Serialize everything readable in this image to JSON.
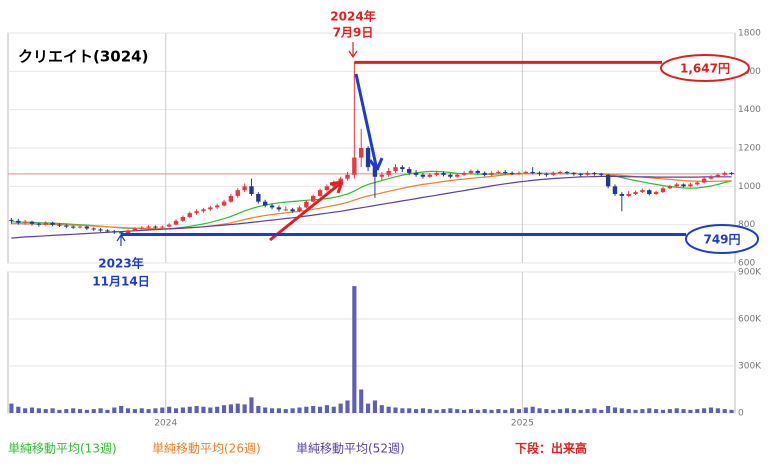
{
  "chart_data": {
    "type": "candlestick",
    "title": "クリエイト(3024)",
    "categories": [
      null,
      null,
      null,
      null,
      null,
      null,
      null,
      null,
      null,
      null,
      null,
      null,
      null,
      null,
      null,
      null,
      null,
      null,
      null,
      null,
      null,
      null,
      null,
      "2024",
      null,
      null,
      null,
      null,
      null,
      null,
      null,
      null,
      null,
      null,
      null,
      null,
      null,
      null,
      null,
      null,
      null,
      null,
      null,
      null,
      null,
      null,
      null,
      null,
      null,
      null,
      null,
      null,
      null,
      null,
      null,
      null,
      null,
      null,
      null,
      null,
      null,
      null,
      null,
      null,
      null,
      null,
      null,
      null,
      null,
      null,
      null,
      null,
      null,
      null,
      null,
      "2025",
      null,
      null,
      null,
      null,
      null,
      null,
      null,
      null,
      null,
      null,
      null,
      null,
      null,
      null,
      null,
      null,
      null,
      null,
      null,
      null,
      null,
      null,
      null,
      null,
      null,
      null,
      null,
      null,
      null,
      null
    ],
    "ohlc": [
      [
        825,
        835,
        805,
        820
      ],
      [
        820,
        830,
        800,
        810
      ],
      [
        810,
        825,
        800,
        815
      ],
      [
        815,
        820,
        795,
        805
      ],
      [
        805,
        812,
        790,
        800
      ],
      [
        800,
        818,
        795,
        810
      ],
      [
        810,
        815,
        792,
        800
      ],
      [
        800,
        808,
        788,
        795
      ],
      [
        795,
        802,
        782,
        790
      ],
      [
        790,
        796,
        778,
        785
      ],
      [
        785,
        798,
        780,
        790
      ],
      [
        790,
        795,
        772,
        780
      ],
      [
        780,
        786,
        768,
        775
      ],
      [
        775,
        782,
        762,
        770
      ],
      [
        770,
        776,
        758,
        765
      ],
      [
        765,
        772,
        752,
        760
      ],
      [
        760,
        766,
        749,
        755
      ],
      [
        755,
        775,
        752,
        770
      ],
      [
        770,
        786,
        765,
        780
      ],
      [
        780,
        792,
        775,
        785
      ],
      [
        785,
        798,
        780,
        790
      ],
      [
        790,
        796,
        778,
        785
      ],
      [
        785,
        796,
        780,
        790
      ],
      [
        790,
        808,
        786,
        800
      ],
      [
        800,
        828,
        796,
        820
      ],
      [
        820,
        848,
        815,
        840
      ],
      [
        840,
        868,
        835,
        860
      ],
      [
        860,
        880,
        852,
        870
      ],
      [
        870,
        888,
        862,
        880
      ],
      [
        880,
        898,
        872,
        890
      ],
      [
        890,
        910,
        882,
        900
      ],
      [
        900,
        930,
        895,
        920
      ],
      [
        920,
        960,
        915,
        950
      ],
      [
        950,
        990,
        940,
        980
      ],
      [
        980,
        1015,
        970,
        1000
      ],
      [
        1000,
        1040,
        950,
        960
      ],
      [
        960,
        970,
        910,
        920
      ],
      [
        920,
        930,
        890,
        900
      ],
      [
        900,
        910,
        880,
        890
      ],
      [
        890,
        900,
        868,
        880
      ],
      [
        880,
        895,
        870,
        880
      ],
      [
        880,
        888,
        862,
        870
      ],
      [
        870,
        898,
        865,
        890
      ],
      [
        890,
        928,
        885,
        920
      ],
      [
        920,
        958,
        915,
        950
      ],
      [
        950,
        988,
        945,
        980
      ],
      [
        980,
        1010,
        972,
        1000
      ],
      [
        1000,
        1030,
        995,
        1020
      ],
      [
        1020,
        1050,
        1010,
        1040
      ],
      [
        1040,
        1075,
        1030,
        1060
      ],
      [
        1060,
        1647,
        1040,
        1150
      ],
      [
        1150,
        1300,
        1100,
        1200
      ],
      [
        1200,
        1210,
        1080,
        1100
      ],
      [
        1100,
        1110,
        940,
        1050
      ],
      [
        1050,
        1075,
        1030,
        1060
      ],
      [
        1060,
        1095,
        1050,
        1080
      ],
      [
        1080,
        1115,
        1070,
        1100
      ],
      [
        1100,
        1110,
        1075,
        1090
      ],
      [
        1090,
        1100,
        1060,
        1070
      ],
      [
        1070,
        1085,
        1050,
        1060
      ],
      [
        1060,
        1070,
        1040,
        1050
      ],
      [
        1050,
        1070,
        1045,
        1060
      ],
      [
        1060,
        1080,
        1052,
        1070
      ],
      [
        1070,
        1078,
        1052,
        1060
      ],
      [
        1060,
        1068,
        1042,
        1050
      ],
      [
        1050,
        1068,
        1045,
        1060
      ],
      [
        1060,
        1078,
        1055,
        1070
      ],
      [
        1070,
        1088,
        1062,
        1080
      ],
      [
        1080,
        1088,
        1062,
        1070
      ],
      [
        1070,
        1078,
        1052,
        1060
      ],
      [
        1060,
        1078,
        1055,
        1070
      ],
      [
        1070,
        1082,
        1064,
        1075
      ],
      [
        1075,
        1085,
        1062,
        1070
      ],
      [
        1070,
        1078,
        1058,
        1065
      ],
      [
        1065,
        1078,
        1060,
        1070
      ],
      [
        1070,
        1082,
        1065,
        1075
      ],
      [
        1075,
        1100,
        1062,
        1070
      ],
      [
        1070,
        1078,
        1055,
        1065
      ],
      [
        1065,
        1072,
        1050,
        1060
      ],
      [
        1060,
        1078,
        1055,
        1070
      ],
      [
        1070,
        1082,
        1064,
        1075
      ],
      [
        1075,
        1080,
        1062,
        1070
      ],
      [
        1070,
        1075,
        1055,
        1065
      ],
      [
        1065,
        1070,
        1050,
        1060
      ],
      [
        1060,
        1078,
        1055,
        1070
      ],
      [
        1070,
        1075,
        1055,
        1065
      ],
      [
        1065,
        1070,
        1050,
        1060
      ],
      [
        1060,
        1065,
        990,
        1000
      ],
      [
        1000,
        1010,
        950,
        960
      ],
      [
        960,
        970,
        870,
        950
      ],
      [
        950,
        975,
        945,
        960
      ],
      [
        960,
        978,
        955,
        970
      ],
      [
        970,
        988,
        965,
        980
      ],
      [
        980,
        985,
        952,
        960
      ],
      [
        960,
        978,
        955,
        970
      ],
      [
        970,
        998,
        965,
        990
      ],
      [
        990,
        1008,
        985,
        1000
      ],
      [
        1000,
        1018,
        995,
        1010
      ],
      [
        1010,
        1015,
        995,
        1000
      ],
      [
        1000,
        1018,
        995,
        1010
      ],
      [
        1010,
        1028,
        1005,
        1020
      ],
      [
        1020,
        1048,
        1015,
        1040
      ],
      [
        1040,
        1058,
        1035,
        1050
      ],
      [
        1050,
        1068,
        1045,
        1060
      ],
      [
        1060,
        1078,
        1055,
        1070
      ],
      [
        1070,
        1075,
        1058,
        1065
      ]
    ],
    "up_color": "#e8383d",
    "down_color": "#1f3a93",
    "series": [
      {
        "name": "単純移動平均(13週)",
        "color": "#33bb33",
        "values": [
          815,
          814,
          813,
          812,
          810,
          809,
          808,
          806,
          804,
          802,
          800,
          798,
          795,
          792,
          789,
          786,
          783,
          781,
          780,
          779,
          778,
          778,
          778,
          779,
          782,
          786,
          791,
          797,
          804,
          812,
          821,
          831,
          843,
          857,
          872,
          884,
          894,
          902,
          909,
          914,
          918,
          921,
          924,
          927,
          930,
          932,
          936,
          942,
          950,
          960,
          975,
          995,
          1010,
          1020,
          1030,
          1040,
          1050,
          1058,
          1065,
          1070,
          1075,
          1078,
          1078,
          1076,
          1072,
          1068,
          1066,
          1065,
          1064,
          1064,
          1064,
          1065,
          1066,
          1066,
          1067,
          1067,
          1068,
          1068,
          1068,
          1068,
          1068,
          1068,
          1067,
          1067,
          1067,
          1066,
          1066,
          1062,
          1054,
          1045,
          1037,
          1030,
          1023,
          1016,
          1010,
          1004,
          999,
          995,
          992,
          990,
          992,
          996,
          1002,
          1010,
          1020,
          1028
        ]
      },
      {
        "name": "単純移動平均(26週)",
        "color": "#f07f2a",
        "values": [
          805,
          805,
          804,
          804,
          803,
          802,
          801,
          800,
          799,
          798,
          797,
          795,
          793,
          791,
          789,
          787,
          785,
          783,
          782,
          781,
          780,
          779,
          779,
          779,
          780,
          781,
          783,
          786,
          789,
          793,
          798,
          803,
          810,
          818,
          827,
          835,
          842,
          848,
          853,
          858,
          862,
          866,
          870,
          875,
          880,
          886,
          893,
          900,
          908,
          916,
          928,
          940,
          950,
          958,
          966,
          974,
          982,
          990,
          997,
          1004,
          1010,
          1015,
          1020,
          1025,
          1030,
          1034,
          1038,
          1042,
          1045,
          1048,
          1052,
          1056,
          1060,
          1063,
          1065,
          1066,
          1067,
          1067,
          1067,
          1067,
          1067,
          1067,
          1067,
          1066,
          1066,
          1066,
          1065,
          1063,
          1060,
          1057,
          1054,
          1051,
          1048,
          1045,
          1042,
          1039,
          1036,
          1033,
          1030,
          1028,
          1027,
          1026,
          1026,
          1027,
          1028,
          1029
        ]
      },
      {
        "name": "単純移動平均(52週)",
        "color": "#5a3ea8",
        "values": [
          730,
          733,
          736,
          738,
          740,
          742,
          744,
          746,
          748,
          750,
          752,
          754,
          756,
          758,
          760,
          762,
          764,
          766,
          768,
          770,
          772,
          774,
          776,
          778,
          780,
          782,
          784,
          786,
          789,
          792,
          795,
          798,
          801,
          804,
          808,
          812,
          816,
          820,
          824,
          828,
          832,
          836,
          840,
          845,
          850,
          855,
          860,
          865,
          870,
          876,
          882,
          888,
          894,
          900,
          906,
          912,
          918,
          924,
          930,
          936,
          942,
          948,
          954,
          960,
          966,
          972,
          978,
          984,
          990,
          996,
          1002,
          1008,
          1013,
          1018,
          1023,
          1027,
          1031,
          1035,
          1038,
          1041,
          1043,
          1045,
          1047,
          1049,
          1050,
          1051,
          1052,
          1052,
          1052,
          1051,
          1050,
          1050,
          1049,
          1049,
          1048,
          1048,
          1048,
          1048,
          1048,
          1048,
          1048,
          1049,
          1049,
          1050,
          1050,
          1050
        ]
      }
    ],
    "volume": {
      "name": "下段：出来高",
      "color": "#5b5fb5",
      "values": [
        60000,
        40000,
        30000,
        35000,
        30000,
        25000,
        30000,
        20000,
        25000,
        30000,
        25000,
        20000,
        25000,
        30000,
        20000,
        35000,
        45000,
        30000,
        25000,
        30000,
        25000,
        30000,
        35000,
        40000,
        30000,
        35000,
        40000,
        45000,
        40000,
        35000,
        40000,
        50000,
        55000,
        60000,
        55000,
        100000,
        45000,
        35000,
        30000,
        30000,
        25000,
        30000,
        35000,
        40000,
        45000,
        40000,
        50000,
        40000,
        60000,
        80000,
        810000,
        150000,
        60000,
        80000,
        50000,
        40000,
        35000,
        30000,
        30000,
        25000,
        30000,
        25000,
        20000,
        25000,
        30000,
        25000,
        20000,
        25000,
        20000,
        25000,
        20000,
        25000,
        20000,
        30000,
        25000,
        35000,
        40000,
        30000,
        25000,
        20000,
        25000,
        30000,
        25000,
        20000,
        25000,
        30000,
        20000,
        45000,
        35000,
        30000,
        25000,
        20000,
        25000,
        30000,
        25000,
        20000,
        25000,
        30000,
        25000,
        20000,
        25000,
        30000,
        35000,
        30000,
        25000,
        20000
      ],
      "ylim": [
        0,
        900000
      ],
      "yticks": [
        0,
        {
          "value": 300000,
          "label": "300K"
        },
        {
          "value": 600000,
          "label": "600K"
        },
        {
          "value": 900000,
          "label": "900K"
        }
      ]
    },
    "ylim": [
      600,
      1800
    ],
    "yticks": [
      600,
      800,
      1000,
      1200,
      1400,
      1600,
      1800
    ],
    "grid": true,
    "annotations": [
      "2024年",
      "7月9日",
      "1,647円",
      "749円",
      "2023年",
      "11月14日"
    ]
  }
}
